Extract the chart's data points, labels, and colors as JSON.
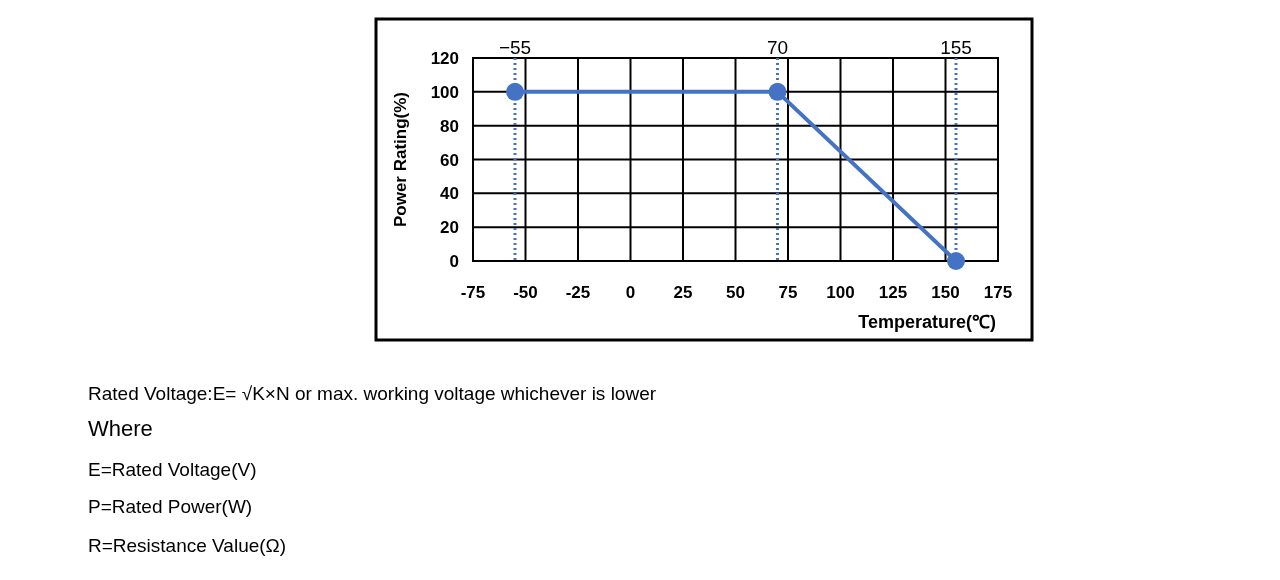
{
  "chart_data": {
    "type": "line",
    "xlabel": "Temperature(℃)",
    "ylabel": "Power Rating(%)",
    "x": [
      -55,
      70,
      155
    ],
    "series": [
      {
        "color": "#4472c4",
        "values": [
          100,
          100,
          0
        ]
      }
    ],
    "xlim": [
      -75,
      175
    ],
    "xticks": [
      -75,
      -50,
      -25,
      0,
      25,
      50,
      75,
      100,
      125,
      150,
      175
    ],
    "ylim": [
      0,
      120
    ],
    "yticks": [
      0,
      20,
      40,
      60,
      80,
      100,
      120
    ],
    "grid": true,
    "marker": "circle",
    "line_style": "solid",
    "ref_lines": [
      {
        "axis": "x",
        "value": -55,
        "label": "−55",
        "color": "#4472c4",
        "line_style": "dotted"
      },
      {
        "axis": "x",
        "value": 70,
        "label": "70",
        "color": "#4472c4",
        "line_style": "dotted"
      },
      {
        "axis": "x",
        "value": 155,
        "label": "155",
        "color": "#4472c4",
        "line_style": "dotted"
      }
    ],
    "annotations": [
      "Rated Voltage:E= √K×N or max. working voltage whichever is lower",
      "Where",
      "E=Rated Voltage(V)",
      "P=Rated Power(W)",
      "R=Resistance Value(Ω)"
    ]
  }
}
